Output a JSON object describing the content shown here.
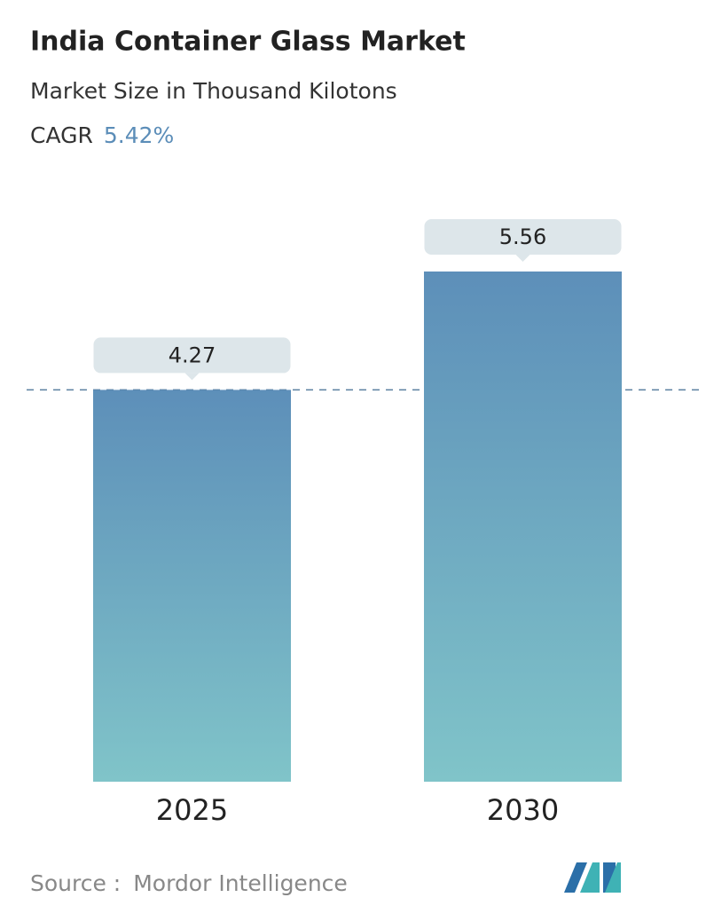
{
  "chart_data": {
    "type": "bar",
    "title": "India Container Glass Market",
    "subtitle": "Market Size in Thousand Kilotons",
    "cagr": {
      "name": "CAGR",
      "value": 5.42,
      "label": "5.42%"
    },
    "categories": [
      "2025",
      "2030"
    ],
    "values": [
      4.27,
      5.56
    ],
    "gradient": [
      "#5d8fb9",
      "#80c4c9"
    ],
    "source": {
      "label": "Source :",
      "name": "Mordor Intelligence"
    }
  }
}
